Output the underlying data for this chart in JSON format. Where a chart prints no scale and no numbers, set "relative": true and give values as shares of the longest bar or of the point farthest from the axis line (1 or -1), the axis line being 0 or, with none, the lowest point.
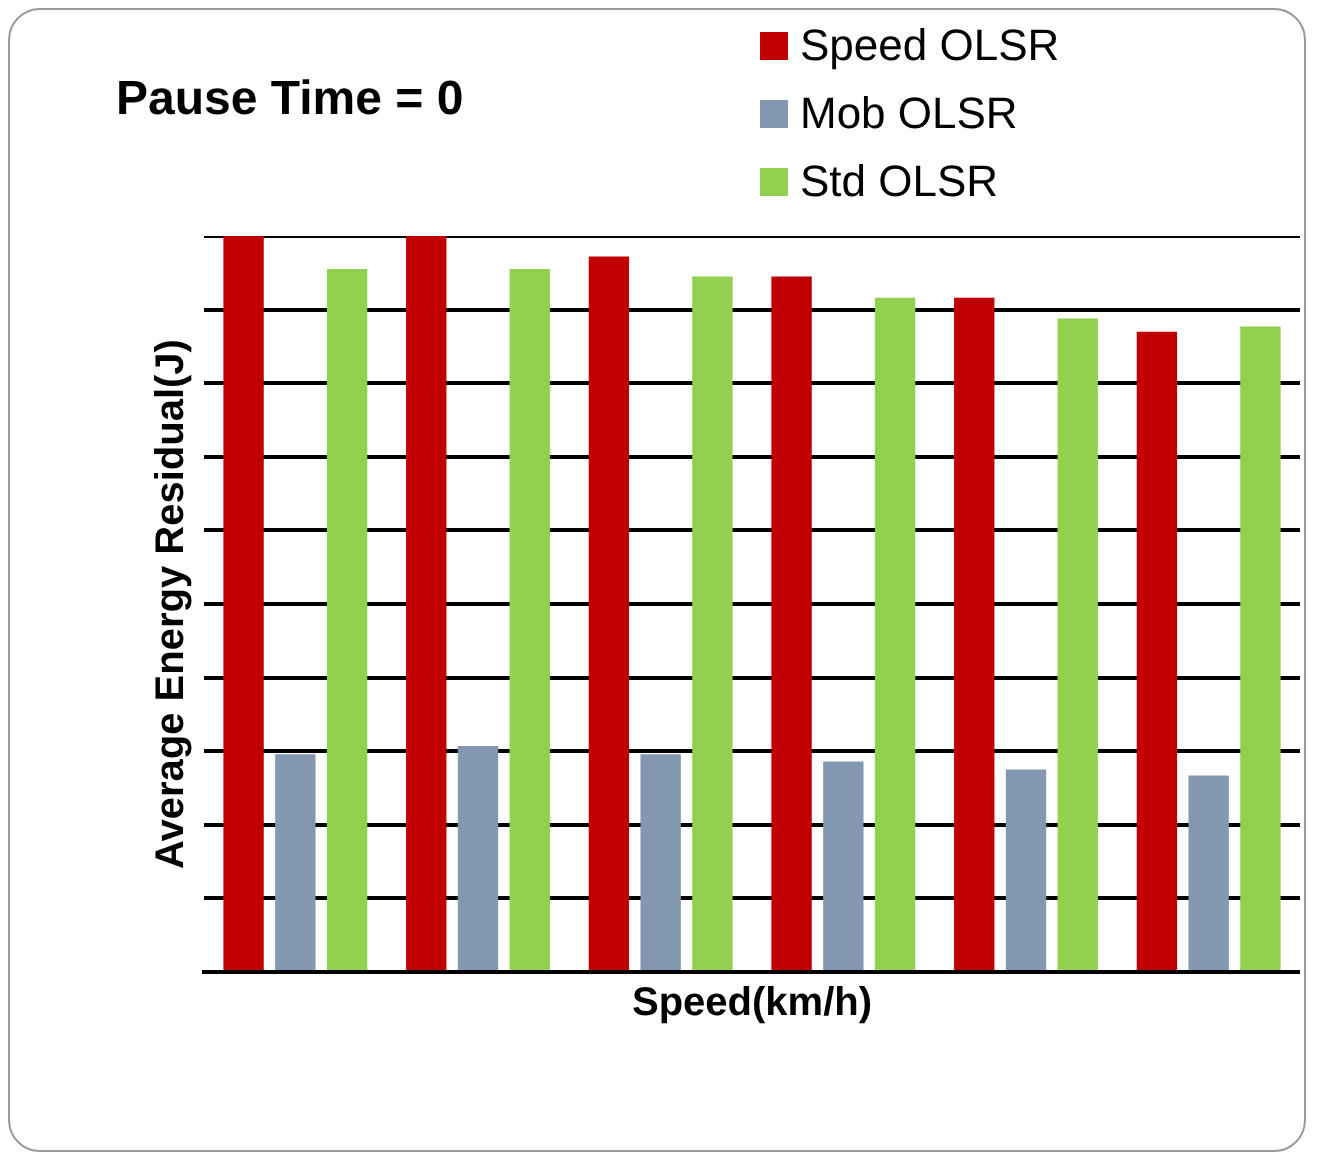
{
  "chart_data": {
    "type": "bar",
    "title": "Pause Time = 0",
    "xlabel": "Speed(km/h)",
    "ylabel": "Average Energy Residual(J)",
    "relative": true,
    "grid": "y",
    "legend": "top right",
    "categories": [
      null,
      null,
      null,
      null,
      null,
      null
    ],
    "series": [
      {
        "name": "Speed OLSR",
        "color": "#c00000",
        "values": [
          1,
          1,
          0.972,
          0.945,
          0.916,
          0.87
        ]
      },
      {
        "name": "Mob OLSR",
        "color": "#8497b0",
        "values": [
          0.296,
          0.307,
          0.296,
          0.286,
          0.275,
          0.267
        ]
      },
      {
        "name": "Std OLSR",
        "color": "#92d050",
        "values": [
          0.955,
          0.955,
          0.945,
          0.916,
          0.888,
          0.877
        ]
      }
    ]
  }
}
